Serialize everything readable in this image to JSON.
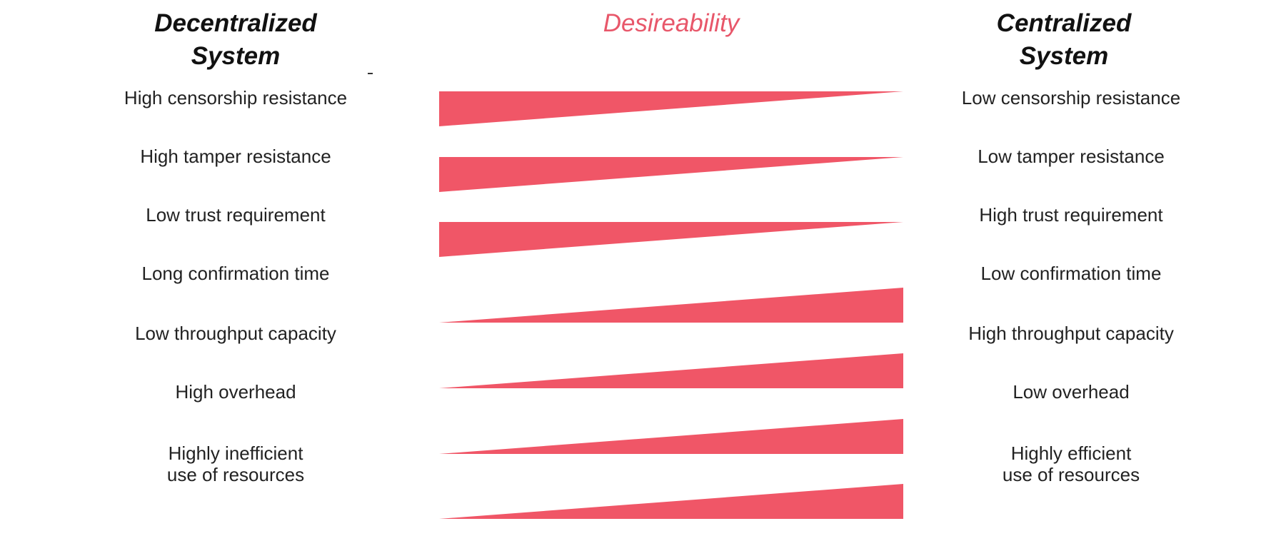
{
  "headers": {
    "left": "Decentralized\nSystem",
    "center": "Desireability",
    "right": "Centralized\nSystem"
  },
  "colors": {
    "wedge": "#f05667",
    "accent_text": "#e8576a"
  },
  "rows": [
    {
      "left": "High censorship resistance",
      "right": "Low censorship resistance",
      "desirable_side": "left"
    },
    {
      "left": "High tamper resistance",
      "right": "Low tamper resistance",
      "desirable_side": "left"
    },
    {
      "left": "Low trust requirement",
      "right": "High trust requirement",
      "desirable_side": "left"
    },
    {
      "left": "Long confirmation time",
      "right": "Low confirmation time",
      "desirable_side": "right"
    },
    {
      "left": "Low throughput capacity",
      "right": "High throughput capacity",
      "desirable_side": "right"
    },
    {
      "left": "High overhead",
      "right": "Low overhead",
      "desirable_side": "right"
    },
    {
      "left": "Highly inefficient\nuse of resources",
      "right": "Highly efficient\nuse of resources",
      "desirable_side": "right"
    }
  ]
}
